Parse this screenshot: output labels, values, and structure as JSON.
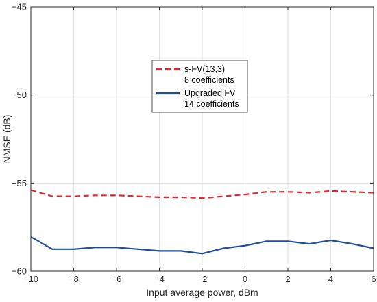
{
  "chart_data": {
    "type": "line",
    "xlabel": "Input average power, dBm",
    "ylabel": "NMSE (dB)",
    "xlim": [
      -10,
      6
    ],
    "ylim": [
      -60,
      -45
    ],
    "xticks": [
      -10,
      -8,
      -6,
      -4,
      -2,
      0,
      2,
      4,
      6
    ],
    "yticks": [
      -45,
      -50,
      -55,
      -60
    ],
    "grid": true,
    "legend_position": "center",
    "x": [
      -10,
      -9,
      -8,
      -7,
      -6,
      -5,
      -4,
      -3,
      -2,
      -1,
      0,
      1,
      2,
      3,
      4,
      5,
      6
    ],
    "series": [
      {
        "name_lines": [
          "s-FV(13,3)",
          "8 coefficients"
        ],
        "color": "#e8262b",
        "dash": "dashed",
        "values": [
          -55.4,
          -55.75,
          -55.75,
          -55.7,
          -55.7,
          -55.75,
          -55.8,
          -55.8,
          -55.85,
          -55.75,
          -55.65,
          -55.5,
          -55.5,
          -55.55,
          -55.45,
          -55.5,
          -55.55
        ]
      },
      {
        "name_lines": [
          "Upgraded FV",
          "14 coefficients"
        ],
        "color": "#1f4e9c",
        "dash": "solid",
        "values": [
          -58.05,
          -58.75,
          -58.75,
          -58.65,
          -58.65,
          -58.75,
          -58.85,
          -58.85,
          -59.0,
          -58.7,
          -58.55,
          -58.3,
          -58.3,
          -58.45,
          -58.25,
          -58.45,
          -58.7
        ]
      }
    ]
  }
}
